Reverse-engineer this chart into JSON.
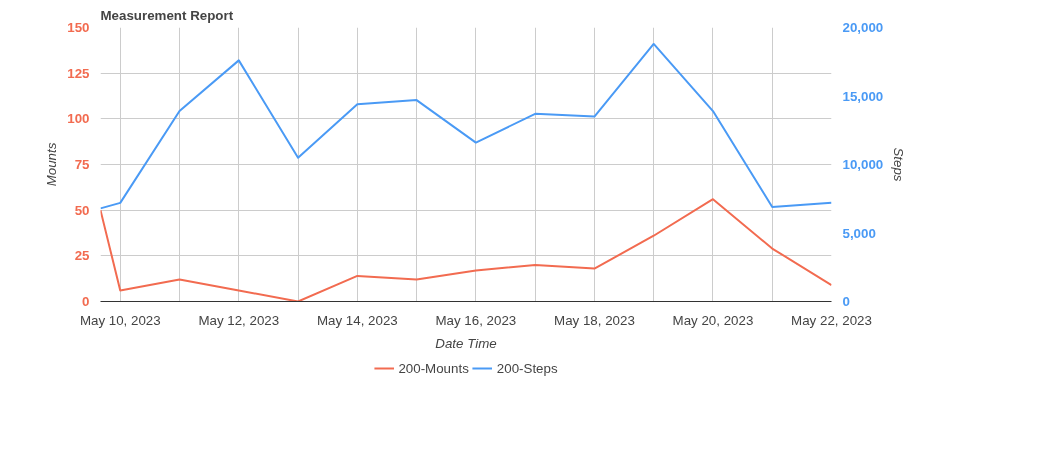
{
  "chart_data": {
    "type": "line",
    "title": "Measurement Report",
    "xlabel": "Date Time",
    "ylabel": "Mounts",
    "y2label": "Steps",
    "x": [
      "2023-05-09T16:00",
      "2023-05-10",
      "2023-05-11",
      "2023-05-12",
      "2023-05-13",
      "2023-05-14",
      "2023-05-15",
      "2023-05-16",
      "2023-05-17",
      "2023-05-18",
      "2023-05-19",
      "2023-05-20",
      "2023-05-21",
      "2023-05-22"
    ],
    "series": [
      {
        "name": "200-Mounts",
        "color": "#f26b50",
        "values": [
          50,
          6,
          12,
          6,
          0,
          14,
          12,
          17,
          20,
          18,
          36,
          56,
          29,
          9
        ]
      },
      {
        "name": "200-Steps",
        "color": "#4a9af5",
        "axis": "y2",
        "values": [
          6800,
          7200,
          13900,
          17600,
          10500,
          14400,
          14700,
          11600,
          13700,
          13500,
          18800,
          13900,
          6900,
          7200
        ]
      }
    ],
    "xlim": [
      "2023-05-09T16:00",
      "2023-05-22"
    ],
    "xticks": [
      {
        "value": "2023-05-10",
        "label": "May 10, 2023"
      },
      {
        "value": "2023-05-11",
        "label": null
      },
      {
        "value": "2023-05-12",
        "label": "May 12, 2023"
      },
      {
        "value": "2023-05-13",
        "label": null
      },
      {
        "value": "2023-05-14",
        "label": "May 14, 2023"
      },
      {
        "value": "2023-05-15",
        "label": null
      },
      {
        "value": "2023-05-16",
        "label": "May 16, 2023"
      },
      {
        "value": "2023-05-17",
        "label": null
      },
      {
        "value": "2023-05-18",
        "label": "May 18, 2023"
      },
      {
        "value": "2023-05-19",
        "label": null
      },
      {
        "value": "2023-05-20",
        "label": "May 20, 2023"
      },
      {
        "value": "2023-05-21",
        "label": null
      },
      {
        "value": "2023-05-22",
        "label": "May 22, 2023"
      }
    ],
    "ylim": [
      0,
      150
    ],
    "yticks": [
      0,
      25,
      50,
      75,
      100,
      125,
      150
    ],
    "y2lim": [
      0,
      20000
    ],
    "y2ticks": [
      0,
      {
        "value": 5000,
        "label": "5,000"
      },
      {
        "value": 10000,
        "label": "10,000"
      },
      {
        "value": 15000,
        "label": "15,000"
      },
      {
        "value": 20000,
        "label": "20,000"
      }
    ],
    "grid": true,
    "legend": "bottom",
    "line_style": "solid",
    "marker": "none"
  }
}
